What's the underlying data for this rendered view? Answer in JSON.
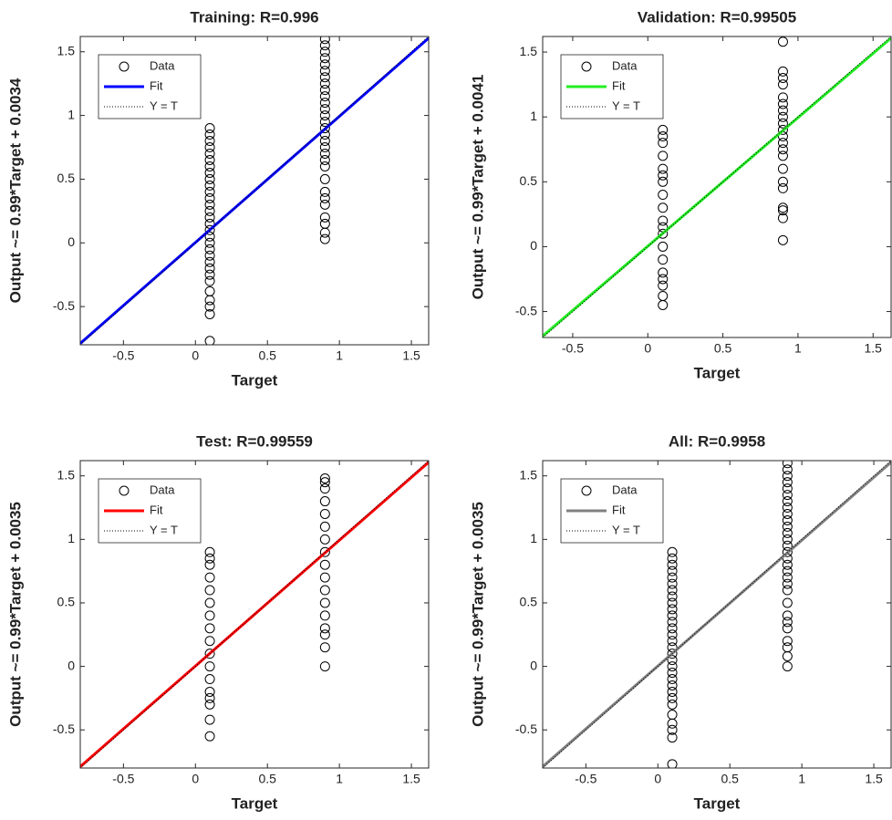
{
  "chart_data": [
    {
      "type": "scatter",
      "title": "Training: R=0.996",
      "x_label": "Target",
      "y_label": "Output ~= 0.99*Target + 0.0034",
      "xlim": [
        -0.8,
        1.62
      ],
      "ylim": [
        -0.8,
        1.62
      ],
      "xticks": [
        -0.5,
        0,
        0.5,
        1,
        1.5
      ],
      "yticks": [
        -0.5,
        0,
        0.5,
        1,
        1.5
      ],
      "legend": "upper left",
      "series": [
        {
          "name": "Data",
          "color": "#000000",
          "style": "circle",
          "x": [
            0.1,
            0.1,
            0.1,
            0.1,
            0.1,
            0.1,
            0.1,
            0.1,
            0.1,
            0.1,
            0.1,
            0.1,
            0.1,
            0.1,
            0.1,
            0.1,
            0.1,
            0.1,
            0.1,
            0.1,
            0.1,
            0.1,
            0.1,
            0.1,
            0.1,
            0.1,
            0.1,
            0.1,
            0.1,
            0.1,
            0.9,
            0.9,
            0.9,
            0.9,
            0.9,
            0.9,
            0.9,
            0.9,
            0.9,
            0.9,
            0.9,
            0.9,
            0.9,
            0.9,
            0.9,
            0.9,
            0.9,
            0.9,
            0.9,
            0.9,
            0.9,
            0.9,
            0.9,
            0.9,
            0.9,
            0.9,
            0.9,
            0.9,
            0.9
          ],
          "values": [
            -0.77,
            -0.56,
            -0.5,
            -0.45,
            -0.38,
            -0.3,
            -0.25,
            -0.2,
            -0.15,
            -0.1,
            -0.05,
            0,
            0.05,
            0.1,
            0.15,
            0.2,
            0.25,
            0.3,
            0.35,
            0.4,
            0.45,
            0.5,
            0.55,
            0.6,
            0.65,
            0.7,
            0.75,
            0.8,
            0.85,
            0.9,
            0.03,
            0.08,
            0.15,
            0.2,
            0.3,
            0.35,
            0.4,
            0.5,
            0.6,
            0.65,
            0.7,
            0.75,
            0.8,
            0.85,
            0.9,
            0.95,
            1.0,
            1.05,
            1.1,
            1.15,
            1.2,
            1.25,
            1.3,
            1.35,
            1.4,
            1.45,
            1.5,
            1.55,
            1.6
          ]
        },
        {
          "name": "Fit",
          "color": "#0000ff",
          "style": "solid",
          "x": [
            -0.8,
            1.62
          ],
          "values": [
            -0.789,
            1.607
          ]
        },
        {
          "name": "Y = T",
          "color": "#000000",
          "style": "dotted",
          "x": [
            -0.8,
            1.62
          ],
          "values": [
            -0.8,
            1.62
          ]
        }
      ]
    },
    {
      "type": "scatter",
      "title": "Validation: R=0.99505",
      "x_label": "Target",
      "y_label": "Output ~= 0.99*Target + 0.0041",
      "xlim": [
        -0.7,
        1.62
      ],
      "ylim": [
        -0.7,
        1.62
      ],
      "xticks": [
        -0.5,
        0,
        0.5,
        1,
        1.5
      ],
      "yticks": [
        -0.5,
        0,
        0.5,
        1,
        1.5
      ],
      "legend": "upper left",
      "series": [
        {
          "name": "Data",
          "color": "#000000",
          "style": "circle",
          "x": [
            0.1,
            0.1,
            0.1,
            0.1,
            0.1,
            0.1,
            0.1,
            0.1,
            0.1,
            0.1,
            0.1,
            0.1,
            0.1,
            0.1,
            0.1,
            0.1,
            0.1,
            0.1,
            0.1,
            0.9,
            0.9,
            0.9,
            0.9,
            0.9,
            0.9,
            0.9,
            0.9,
            0.9,
            0.9,
            0.9,
            0.9,
            0.9,
            0.9,
            0.9,
            0.9,
            0.9,
            0.9,
            0.9,
            0.9,
            0.9
          ],
          "values": [
            -0.45,
            -0.38,
            -0.3,
            -0.25,
            -0.2,
            -0.1,
            0,
            0.1,
            0.15,
            0.2,
            0.3,
            0.4,
            0.5,
            0.55,
            0.6,
            0.7,
            0.8,
            0.85,
            0.9,
            0.05,
            0.22,
            0.28,
            0.3,
            0.45,
            0.5,
            0.6,
            0.7,
            0.75,
            0.8,
            0.85,
            0.9,
            0.95,
            1.0,
            1.05,
            1.1,
            1.15,
            1.25,
            1.3,
            1.35,
            1.58
          ]
        },
        {
          "name": "Fit",
          "color": "#22ee22",
          "style": "solid",
          "x": [
            -0.7,
            1.62
          ],
          "values": [
            -0.689,
            1.608
          ]
        },
        {
          "name": "Y = T",
          "color": "#000000",
          "style": "dotted",
          "x": [
            -0.7,
            1.62
          ],
          "values": [
            -0.7,
            1.62
          ]
        }
      ]
    },
    {
      "type": "scatter",
      "title": "Test: R=0.99559",
      "x_label": "Target",
      "y_label": "Output ~= 0.99*Target + 0.0035",
      "xlim": [
        -0.8,
        1.62
      ],
      "ylim": [
        -0.8,
        1.62
      ],
      "xticks": [
        -0.5,
        0,
        0.5,
        1,
        1.5
      ],
      "yticks": [
        -0.5,
        0,
        0.5,
        1,
        1.5
      ],
      "legend": "upper left",
      "series": [
        {
          "name": "Data",
          "color": "#000000",
          "style": "circle",
          "x": [
            0.1,
            0.1,
            0.1,
            0.1,
            0.1,
            0.1,
            0.1,
            0.1,
            0.1,
            0.1,
            0.1,
            0.1,
            0.1,
            0.1,
            0.1,
            0.1,
            0.1,
            0.9,
            0.9,
            0.9,
            0.9,
            0.9,
            0.9,
            0.9,
            0.9,
            0.9,
            0.9,
            0.9,
            0.9,
            0.9,
            0.9,
            0.9,
            0.9,
            0.9
          ],
          "values": [
            -0.55,
            -0.42,
            -0.3,
            -0.25,
            -0.2,
            -0.1,
            0,
            0.1,
            0.2,
            0.3,
            0.4,
            0.5,
            0.6,
            0.7,
            0.8,
            0.85,
            0.9,
            0.0,
            0.15,
            0.25,
            0.3,
            0.4,
            0.5,
            0.6,
            0.7,
            0.8,
            0.9,
            1.0,
            1.1,
            1.2,
            1.3,
            1.4,
            1.45,
            1.48
          ]
        },
        {
          "name": "Fit",
          "color": "#ff0000",
          "style": "solid",
          "x": [
            -0.8,
            1.62
          ],
          "values": [
            -0.789,
            1.607
          ]
        },
        {
          "name": "Y = T",
          "color": "#000000",
          "style": "dotted",
          "x": [
            -0.8,
            1.62
          ],
          "values": [
            -0.8,
            1.62
          ]
        }
      ]
    },
    {
      "type": "scatter",
      "title": "All: R=0.9958",
      "x_label": "Target",
      "y_label": "Output ~= 0.99*Target + 0.0035",
      "xlim": [
        -0.8,
        1.62
      ],
      "ylim": [
        -0.8,
        1.62
      ],
      "xticks": [
        -0.5,
        0,
        0.5,
        1,
        1.5
      ],
      "yticks": [
        -0.5,
        0,
        0.5,
        1,
        1.5
      ],
      "legend": "upper left",
      "series": [
        {
          "name": "Data",
          "color": "#000000",
          "style": "circle",
          "x": [
            0.1,
            0.1,
            0.1,
            0.1,
            0.1,
            0.1,
            0.1,
            0.1,
            0.1,
            0.1,
            0.1,
            0.1,
            0.1,
            0.1,
            0.1,
            0.1,
            0.1,
            0.1,
            0.1,
            0.1,
            0.1,
            0.1,
            0.1,
            0.1,
            0.1,
            0.1,
            0.1,
            0.1,
            0.1,
            0.1,
            0.9,
            0.9,
            0.9,
            0.9,
            0.9,
            0.9,
            0.9,
            0.9,
            0.9,
            0.9,
            0.9,
            0.9,
            0.9,
            0.9,
            0.9,
            0.9,
            0.9,
            0.9,
            0.9,
            0.9,
            0.9,
            0.9,
            0.9,
            0.9,
            0.9,
            0.9,
            0.9,
            0.9,
            0.9
          ],
          "values": [
            -0.77,
            -0.56,
            -0.5,
            -0.45,
            -0.38,
            -0.3,
            -0.25,
            -0.2,
            -0.15,
            -0.1,
            -0.05,
            0,
            0.05,
            0.1,
            0.15,
            0.2,
            0.25,
            0.3,
            0.35,
            0.4,
            0.45,
            0.5,
            0.55,
            0.6,
            0.65,
            0.7,
            0.75,
            0.8,
            0.85,
            0.9,
            0.0,
            0.08,
            0.15,
            0.2,
            0.3,
            0.35,
            0.4,
            0.5,
            0.6,
            0.65,
            0.7,
            0.75,
            0.8,
            0.85,
            0.9,
            0.95,
            1.0,
            1.05,
            1.1,
            1.15,
            1.2,
            1.25,
            1.3,
            1.35,
            1.4,
            1.45,
            1.5,
            1.55,
            1.6
          ]
        },
        {
          "name": "Fit",
          "color": "#808080",
          "style": "solid",
          "x": [
            -0.8,
            1.62
          ],
          "values": [
            -0.789,
            1.607
          ]
        },
        {
          "name": "Y = T",
          "color": "#000000",
          "style": "dotted",
          "x": [
            -0.8,
            1.62
          ],
          "values": [
            -0.8,
            1.62
          ]
        }
      ]
    }
  ]
}
